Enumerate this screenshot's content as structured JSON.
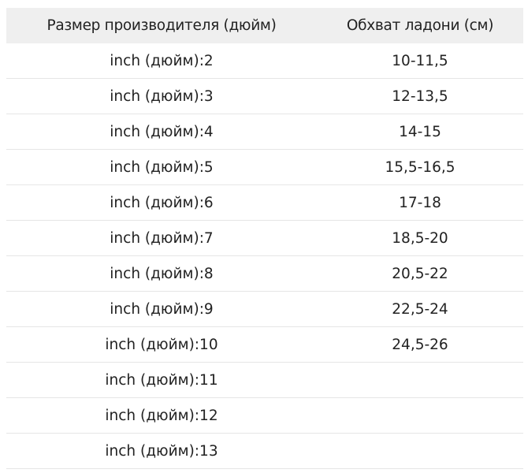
{
  "table": {
    "headers": [
      "Размер производителя (дюйм)",
      "Обхват ладони (см)"
    ],
    "rows": [
      [
        "inch (дюйм):2",
        "10-11,5"
      ],
      [
        "inch (дюйм):3",
        "12-13,5"
      ],
      [
        "inch (дюйм):4",
        "14-15"
      ],
      [
        "inch (дюйм):5",
        "15,5-16,5"
      ],
      [
        "inch (дюйм):6",
        "17-18"
      ],
      [
        "inch (дюйм):7",
        "18,5-20"
      ],
      [
        "inch (дюйм):8",
        "20,5-22"
      ],
      [
        "inch (дюйм):9",
        "22,5-24"
      ],
      [
        "inch (дюйм):10",
        "24,5-26"
      ],
      [
        "inch (дюйм):11",
        ""
      ],
      [
        "inch (дюйм):12",
        ""
      ],
      [
        "inch (дюйм):13",
        ""
      ]
    ],
    "header_bg": "#efefef"
  }
}
